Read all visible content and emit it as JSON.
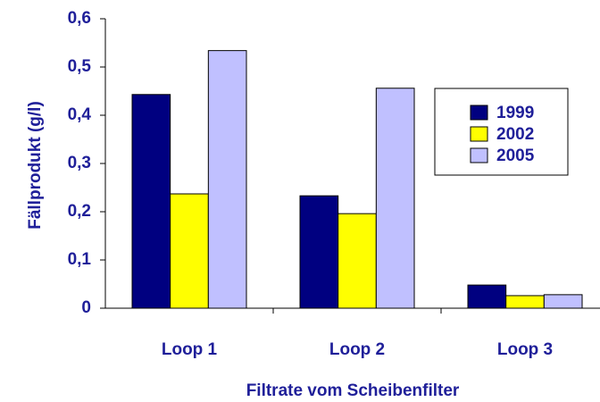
{
  "chart_data": {
    "type": "bar",
    "xlabel": "Filtrate vom Scheibenfilter",
    "ylabel": "Fällprodukt (g/l)",
    "categories": [
      "Loop 1",
      "Loop 2",
      "Loop 3"
    ],
    "series": [
      {
        "name": "1999",
        "color": "#000080",
        "values": [
          0.443,
          0.233,
          0.048
        ]
      },
      {
        "name": "2002",
        "color": "#ffff00",
        "values": [
          0.237,
          0.196,
          0.026
        ]
      },
      {
        "name": "2005",
        "color": "#c0c0ff",
        "values": [
          0.534,
          0.456,
          0.028
        ]
      }
    ],
    "ylim": [
      0,
      0.6
    ],
    "yticks": [
      0,
      {
        "value": 0.1,
        "label": "0,1"
      },
      {
        "value": 0.2,
        "label": "0,2"
      },
      {
        "value": 0.3,
        "label": "0,3"
      },
      {
        "value": 0.4,
        "label": "0,4"
      },
      {
        "value": 0.5,
        "label": "0,5"
      },
      {
        "value": 0.6,
        "label": "0,6"
      }
    ],
    "legend": "upper right",
    "grid": false
  }
}
